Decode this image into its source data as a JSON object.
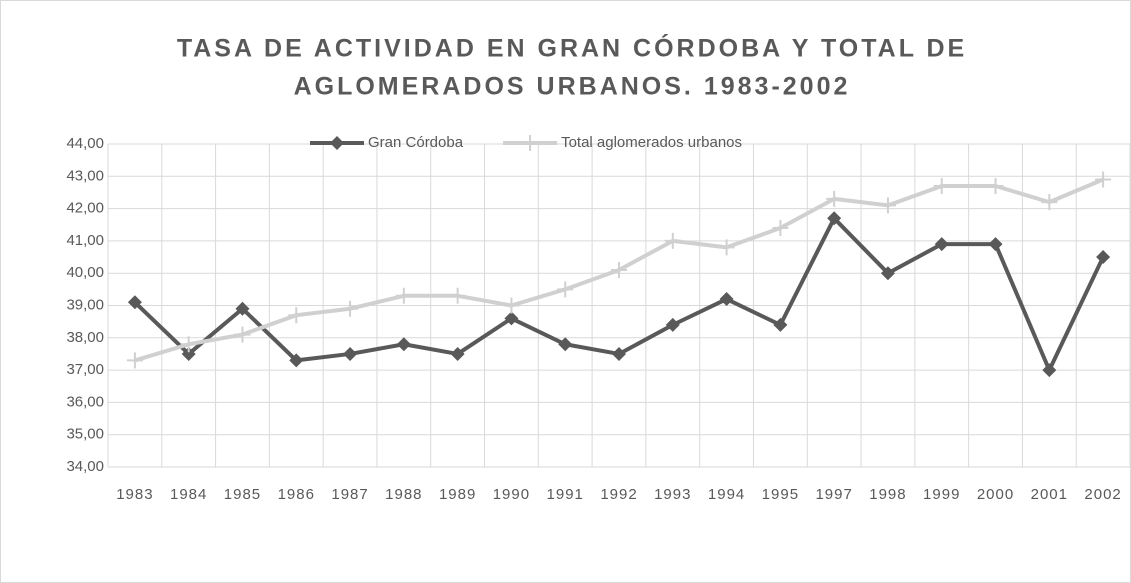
{
  "chart_data": {
    "type": "line",
    "title": [
      "TASA DE ACTIVIDAD EN GRAN CÓRDOBA Y TOTAL DE",
      "AGLOMERADOS URBANOS. 1983-2002"
    ],
    "categories": [
      "1983",
      "1984",
      "1985",
      "1986",
      "1987",
      "1988",
      "1989",
      "1990",
      "1991",
      "1992",
      "1993",
      "1994",
      "1995",
      "1997",
      "1998",
      "1999",
      "2000",
      "2001",
      "2002"
    ],
    "series": [
      {
        "name": "Gran Córdoba",
        "color": "#595959",
        "marker": "diamond",
        "values": [
          39.1,
          37.5,
          38.9,
          37.3,
          37.5,
          37.8,
          37.5,
          38.6,
          37.8,
          37.5,
          38.4,
          39.2,
          38.4,
          41.7,
          40.0,
          40.9,
          40.9,
          37.0,
          40.5
        ]
      },
      {
        "name": "Total  aglomerados urbanos",
        "color": "#d0d0d0",
        "marker": "plus",
        "values": [
          37.3,
          37.8,
          38.1,
          38.7,
          38.9,
          39.3,
          39.3,
          39.0,
          39.5,
          40.1,
          41.0,
          40.8,
          41.4,
          42.3,
          42.1,
          42.7,
          42.7,
          42.2,
          42.9
        ]
      }
    ],
    "ylim": [
      34,
      44
    ],
    "yticks": [
      {
        "value": 34,
        "label": "34,00"
      },
      {
        "value": 35,
        "label": "35,00"
      },
      {
        "value": 36,
        "label": "36,00"
      },
      {
        "value": 37,
        "label": "37,00"
      },
      {
        "value": 38,
        "label": "38,00"
      },
      {
        "value": 39,
        "label": "39,00"
      },
      {
        "value": 40,
        "label": "40,00"
      },
      {
        "value": 41,
        "label": "41,00"
      },
      {
        "value": 42,
        "label": "42,00"
      },
      {
        "value": 43,
        "label": "43,00"
      },
      {
        "value": 44,
        "label": "44,00"
      }
    ],
    "grid": true,
    "legend": "top"
  }
}
